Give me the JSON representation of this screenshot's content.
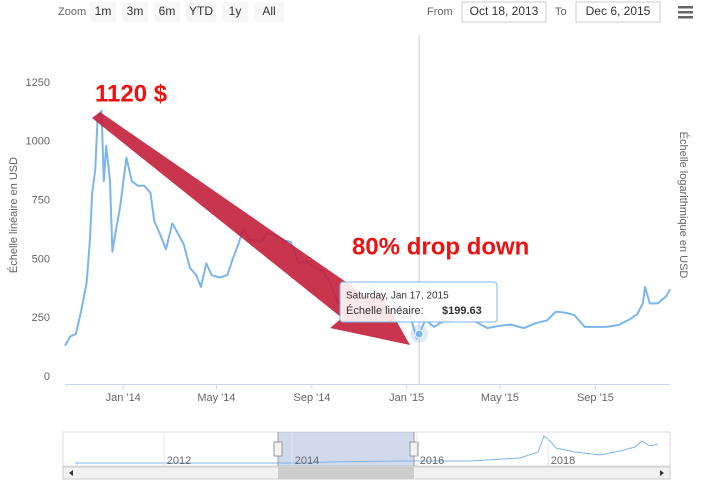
{
  "chart_data": {
    "type": "line",
    "range_selector": {
      "zoom_label": "Zoom",
      "buttons": [
        "1m",
        "3m",
        "6m",
        "YTD",
        "1y",
        "All"
      ],
      "from_label": "From",
      "from": "Oct 18, 2013",
      "to_label": "To",
      "to": "Dec 6, 2015"
    },
    "y_axis_label": "Échelle linéaire en USD",
    "y2_axis_label": "Échelle logarithmique en USD",
    "annotations": [
      "1120 $",
      "80% drop down"
    ],
    "tooltip": {
      "header": "Saturday, Jan 17, 2015",
      "label": "Échelle linéaire:",
      "value_label": "$199.63"
    },
    "xlim": [
      "2013-10-18",
      "2015-12-06"
    ],
    "xticks": [
      {
        "value": "2014-01-01",
        "label": "Jan '14"
      },
      {
        "value": "2014-05-01",
        "label": "May '14"
      },
      {
        "value": "2014-09-01",
        "label": "Sep '14"
      },
      {
        "value": "2015-01-01",
        "label": "Jan '15"
      },
      {
        "value": "2015-05-01",
        "label": "May '15"
      },
      {
        "value": "2015-09-01",
        "label": "Sep '15"
      }
    ],
    "ylim": [
      0,
      1250
    ],
    "yticks": [
      0,
      250,
      500,
      750,
      1000,
      1250
    ],
    "grid": false,
    "navigator_ticks": [
      "2012",
      "2014",
      "2016",
      "2018"
    ],
    "x": [
      "2013-10-18",
      "2013-10-25",
      "2013-11-01",
      "2013-11-08",
      "2013-11-15",
      "2013-11-19",
      "2013-11-22",
      "2013-11-26",
      "2013-11-29",
      "2013-12-04",
      "2013-12-07",
      "2013-12-10",
      "2013-12-15",
      "2013-12-18",
      "2013-12-23",
      "2013-12-28",
      "2014-01-05",
      "2014-01-12",
      "2014-01-20",
      "2014-01-28",
      "2014-02-05",
      "2014-02-10",
      "2014-02-18",
      "2014-02-25",
      "2014-03-05",
      "2014-03-12",
      "2014-03-20",
      "2014-03-28",
      "2014-04-05",
      "2014-04-11",
      "2014-04-18",
      "2014-04-25",
      "2014-05-05",
      "2014-05-15",
      "2014-05-22",
      "2014-05-29",
      "2014-06-05",
      "2014-06-12",
      "2014-06-20",
      "2014-06-28",
      "2014-07-05",
      "2014-07-15",
      "2014-07-25",
      "2014-08-05",
      "2014-08-15",
      "2014-08-25",
      "2014-09-05",
      "2014-09-15",
      "2014-09-25",
      "2014-10-05",
      "2014-10-15",
      "2014-10-25",
      "2014-11-05",
      "2014-11-15",
      "2014-11-25",
      "2014-12-05",
      "2014-12-15",
      "2014-12-25",
      "2015-01-05",
      "2015-01-14",
      "2015-01-17",
      "2015-01-25",
      "2015-02-05",
      "2015-02-15",
      "2015-03-01",
      "2015-03-15",
      "2015-04-01",
      "2015-04-15",
      "2015-05-01",
      "2015-05-15",
      "2015-06-01",
      "2015-06-15",
      "2015-07-01",
      "2015-07-12",
      "2015-07-25",
      "2015-08-05",
      "2015-08-18",
      "2015-09-01",
      "2015-09-15",
      "2015-10-01",
      "2015-10-15",
      "2015-10-25",
      "2015-11-01",
      "2015-11-04",
      "2015-11-10",
      "2015-11-20",
      "2015-12-01",
      "2015-12-06"
    ],
    "series": [
      {
        "name": "Échelle linéaire",
        "color": "#7cb5ec",
        "values": [
          150,
          190,
          200,
          300,
          420,
          600,
          800,
          900,
          1120,
          1150,
          850,
          1000,
          850,
          550,
          650,
          740,
          950,
          850,
          830,
          830,
          800,
          680,
          620,
          560,
          670,
          630,
          580,
          480,
          450,
          400,
          500,
          450,
          440,
          450,
          520,
          580,
          650,
          600,
          600,
          590,
          630,
          620,
          600,
          590,
          500,
          510,
          480,
          470,
          410,
          330,
          390,
          350,
          340,
          390,
          375,
          370,
          340,
          320,
          280,
          180,
          199.63,
          260,
          230,
          250,
          260,
          285,
          250,
          225,
          235,
          240,
          225,
          245,
          258,
          295,
          290,
          280,
          230,
          230,
          230,
          238,
          262,
          285,
          330,
          400,
          330,
          330,
          360,
          390
        ]
      }
    ]
  }
}
